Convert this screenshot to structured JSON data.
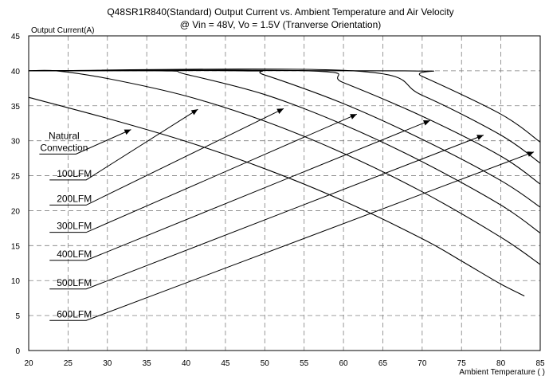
{
  "chart_data": {
    "type": "line",
    "title": [
      "Q48SR1R840(Standard) Output Current vs. Ambient Temperature and Air Velocity",
      "@ Vin = 48V, Vo = 1.5V (Tranverse Orientation)"
    ],
    "xlabel": "Ambient Temperature (   )",
    "ylabel": "Output Current(A)",
    "xlim": [
      20,
      85
    ],
    "ylim": [
      0,
      45
    ],
    "xticks": [
      20,
      25,
      30,
      35,
      40,
      45,
      50,
      55,
      60,
      65,
      70,
      75,
      80,
      85
    ],
    "yticks": [
      0,
      5,
      10,
      15,
      20,
      25,
      30,
      35,
      40,
      45
    ],
    "grid": true,
    "series": [
      {
        "name": "Natural Convection",
        "label_lines": [
          "Natural",
          "Convection"
        ],
        "label_at": [
          25,
          28.1
        ],
        "arrow_to": [
          33,
          31.6
        ],
        "points": [
          [
            20,
            36.2
          ],
          [
            30,
            33.2
          ],
          [
            40,
            29.9
          ],
          [
            50,
            26.0
          ],
          [
            60,
            21.4
          ],
          [
            70,
            16.0
          ],
          [
            75,
            12.8
          ],
          [
            80,
            9.5
          ],
          [
            83,
            7.8
          ]
        ]
      },
      {
        "name": "100LFM",
        "label_lines": [
          "100LFM"
        ],
        "label_at": [
          26.3,
          24.4
        ],
        "arrow_to": [
          41.5,
          34.5
        ],
        "points": [
          [
            20,
            40
          ],
          [
            23.5,
            40
          ],
          [
            30,
            38.9
          ],
          [
            40,
            36.4
          ],
          [
            50,
            32.8
          ],
          [
            60,
            28.2
          ],
          [
            70,
            22.7
          ],
          [
            80,
            16.2
          ],
          [
            85,
            12.3
          ]
        ]
      },
      {
        "name": "200LFM",
        "label_lines": [
          "200LFM"
        ],
        "label_at": [
          26.3,
          20.8
        ],
        "arrow_to": [
          52.4,
          34.6
        ],
        "points": [
          [
            20,
            40
          ],
          [
            37,
            40
          ],
          [
            40,
            39.5
          ],
          [
            50,
            36.6
          ],
          [
            60,
            32.3
          ],
          [
            70,
            27.0
          ],
          [
            80,
            20.8
          ],
          [
            85,
            16.8
          ]
        ]
      },
      {
        "name": "300LFM",
        "label_lines": [
          "300LFM"
        ],
        "label_at": [
          26.3,
          16.9
        ],
        "arrow_to": [
          61.7,
          33.8
        ],
        "points": [
          [
            20,
            40
          ],
          [
            47.2,
            40
          ],
          [
            50,
            39.4
          ],
          [
            60,
            35.3
          ],
          [
            70,
            30.2
          ],
          [
            80,
            24.3
          ],
          [
            85,
            20.5
          ]
        ]
      },
      {
        "name": "400LFM",
        "label_lines": [
          "400LFM"
        ],
        "label_at": [
          26.3,
          12.9
        ],
        "arrow_to": [
          71.0,
          32.9
        ],
        "points": [
          [
            20,
            40
          ],
          [
            55.6,
            40
          ],
          [
            60,
            38.3
          ],
          [
            70,
            33.5
          ],
          [
            80,
            27.8
          ],
          [
            85,
            23.8
          ]
        ]
      },
      {
        "name": "500LFM",
        "label_lines": [
          "500LFM"
        ],
        "label_at": [
          26.3,
          8.8
        ],
        "arrow_to": [
          77.8,
          30.8
        ],
        "points": [
          [
            20,
            40
          ],
          [
            61.3,
            40
          ],
          [
            70,
            36.5
          ],
          [
            80,
            30.8
          ],
          [
            85,
            26.8
          ]
        ]
      },
      {
        "name": "600LFM",
        "label_lines": [
          "600LFM"
        ],
        "label_at": [
          26.3,
          4.3
        ],
        "arrow_to": [
          84.2,
          28.4
        ],
        "points": [
          [
            20,
            40
          ],
          [
            67.6,
            40
          ],
          [
            70,
            39.2
          ],
          [
            80,
            33.8
          ],
          [
            85,
            29.8
          ]
        ]
      }
    ]
  }
}
